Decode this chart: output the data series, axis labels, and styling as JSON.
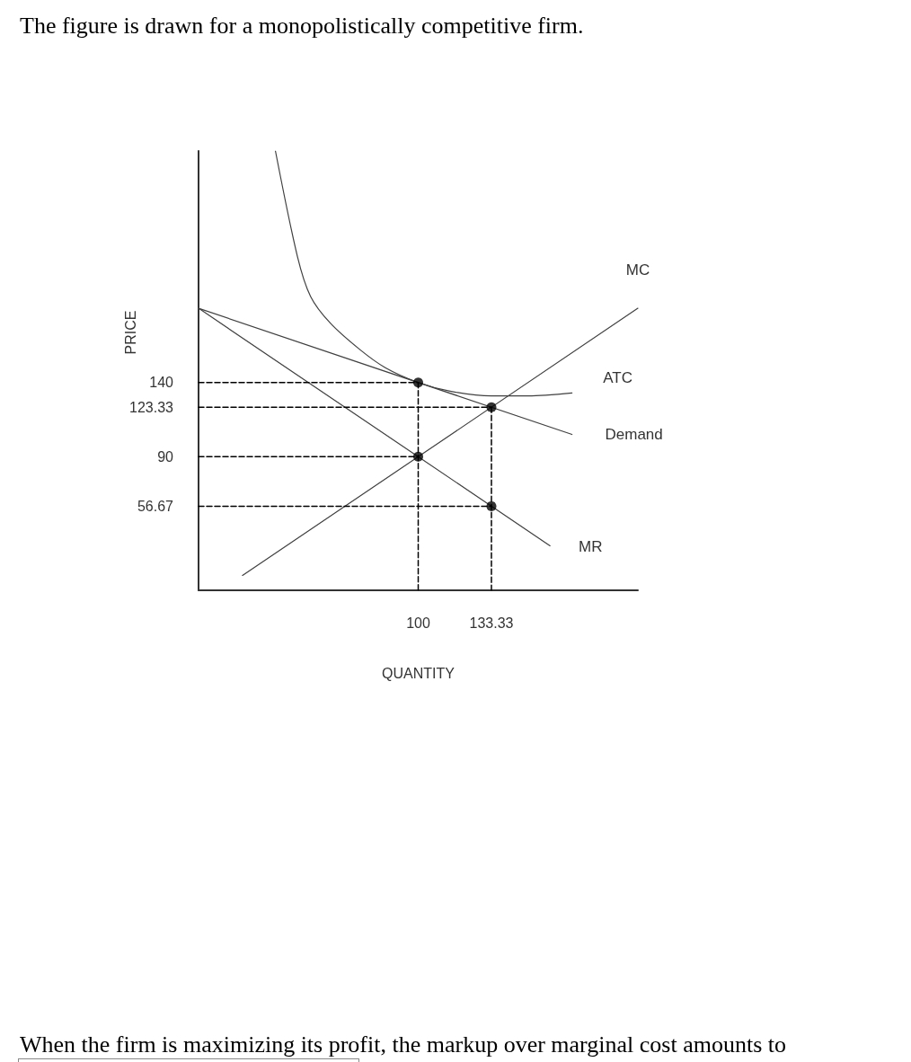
{
  "chart_data": {
    "type": "line",
    "title": "The figure is drawn for a monopolistically competitive firm.",
    "annotations": [
      "When the firm is maximizing its profit, the markup over marginal cost amounts to"
    ],
    "xlabel": "QUANTITY",
    "ylabel": "PRICE",
    "xlim": [
      0,
      200
    ],
    "ylim": [
      0,
      296
    ],
    "xticks": [
      100,
      133.33
    ],
    "yticks": [
      56.67,
      90,
      123.33,
      140
    ],
    "grid": false,
    "legend": false,
    "marker": "none",
    "series": [
      {
        "name": "MC",
        "color": "#404040",
        "x": [
          20,
          200
        ],
        "values": [
          10,
          190
        ]
      },
      {
        "name": "ATC",
        "color": "#404040",
        "x": [
          35,
          45,
          51,
          60,
          73.6,
          85,
          100,
          115,
          133.33,
          150,
          170
        ],
        "values": [
          296,
          225,
          198,
          180,
          162,
          150,
          140,
          134,
          131,
          131,
          133
        ]
      },
      {
        "name": "Demand",
        "color": "#404040",
        "x": [
          0,
          170
        ],
        "values": [
          190,
          105
        ]
      },
      {
        "name": "MR",
        "color": "#404040",
        "x": [
          0,
          160
        ],
        "values": [
          190,
          30
        ]
      },
      {
        "color": "#000000",
        "line_style": "dashed",
        "x": [
          0,
          100
        ],
        "values": [
          140,
          140
        ]
      },
      {
        "color": "#000000",
        "line_style": "dashed",
        "x": [
          0,
          133.33
        ],
        "values": [
          123.33,
          123.33
        ]
      },
      {
        "color": "#000000",
        "line_style": "dashed",
        "x": [
          0,
          100
        ],
        "values": [
          90,
          90
        ]
      },
      {
        "color": "#000000",
        "line_style": "dashed",
        "x": [
          0,
          133.33
        ],
        "values": [
          56.67,
          56.67
        ]
      },
      {
        "color": "#000000",
        "line_style": "dashed",
        "x": [
          100,
          100
        ],
        "values": [
          140,
          0
        ]
      },
      {
        "color": "#000000",
        "line_style": "dashed",
        "x": [
          133.33,
          133.33
        ],
        "values": [
          123.33,
          0
        ]
      },
      {
        "type": "scatter",
        "marker": "circle",
        "color": "#000000",
        "x": [
          100,
          133.33,
          100,
          133.33
        ],
        "values": [
          140,
          123.33,
          90,
          56.67
        ]
      }
    ]
  }
}
